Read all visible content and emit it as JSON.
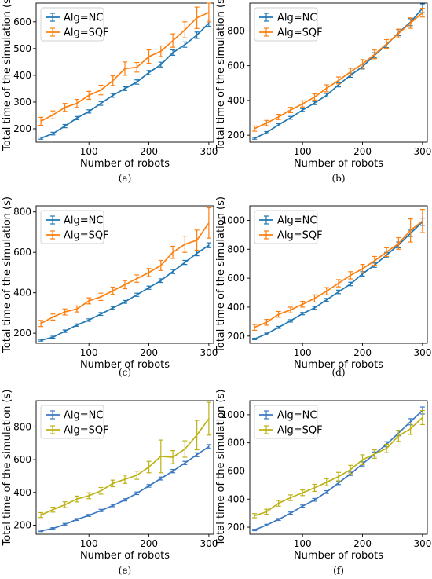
{
  "chart_data": [
    {
      "type": "line",
      "caption": "(a)",
      "xlabel": "Number of robots",
      "ylabel": "Total time of the simulation (s)",
      "xlim": [
        12,
        308
      ],
      "ylim": [
        150,
        670
      ],
      "xticks": [
        100,
        200,
        300
      ],
      "yticks": [
        200,
        300,
        400,
        500,
        600
      ],
      "legend": "top-left",
      "x": [
        20,
        40,
        60,
        80,
        100,
        120,
        140,
        160,
        180,
        200,
        220,
        240,
        260,
        280,
        300
      ],
      "series": [
        {
          "name": "Alg=NC",
          "color": "#1f77b4",
          "values": [
            165,
            182,
            210,
            240,
            265,
            295,
            325,
            350,
            375,
            410,
            440,
            485,
            515,
            550,
            595
          ],
          "errors": [
            4,
            5,
            6,
            6,
            6,
            7,
            7,
            7,
            8,
            8,
            9,
            10,
            10,
            12,
            12
          ]
        },
        {
          "name": "Alg=SQF",
          "color": "#ff7f0e",
          "values": [
            228,
            252,
            280,
            295,
            325,
            345,
            380,
            425,
            430,
            470,
            490,
            530,
            570,
            615,
            635
          ],
          "errors": [
            15,
            15,
            15,
            15,
            15,
            18,
            18,
            25,
            18,
            25,
            20,
            25,
            30,
            40,
            35
          ]
        }
      ]
    },
    {
      "type": "line",
      "caption": "(b)",
      "xlabel": "Number of robots",
      "ylabel": "Total time of the simulation (s)",
      "xlim": [
        12,
        308
      ],
      "ylim": [
        160,
        960
      ],
      "xticks": [
        100,
        200,
        300
      ],
      "yticks": [
        200,
        400,
        600,
        800
      ],
      "legend": "top-left",
      "x": [
        20,
        40,
        60,
        80,
        100,
        120,
        140,
        160,
        180,
        200,
        220,
        240,
        260,
        280,
        300
      ],
      "series": [
        {
          "name": "Alg=NC",
          "color": "#1f77b4",
          "values": [
            182,
            215,
            260,
            300,
            345,
            385,
            430,
            490,
            545,
            595,
            660,
            720,
            790,
            850,
            930
          ],
          "errors": [
            5,
            6,
            7,
            8,
            8,
            9,
            10,
            12,
            12,
            14,
            15,
            16,
            18,
            20,
            25
          ]
        },
        {
          "name": "Alg=SQF",
          "color": "#ff7f0e",
          "values": [
            238,
            270,
            305,
            345,
            380,
            420,
            470,
            515,
            565,
            610,
            665,
            725,
            785,
            845,
            905
          ],
          "errors": [
            15,
            15,
            15,
            15,
            18,
            18,
            20,
            20,
            20,
            25,
            25,
            25,
            25,
            30,
            25
          ]
        }
      ]
    },
    {
      "type": "line",
      "caption": "(c)",
      "xlabel": "Number of robots",
      "ylabel": "Total time of the simulation (s)",
      "xlim": [
        12,
        308
      ],
      "ylim": [
        150,
        830
      ],
      "xticks": [
        100,
        200,
        300
      ],
      "yticks": [
        200,
        400,
        600,
        800
      ],
      "legend": "top-left",
      "x": [
        20,
        40,
        60,
        80,
        100,
        120,
        140,
        160,
        180,
        200,
        220,
        240,
        260,
        280,
        300
      ],
      "series": [
        {
          "name": "Alg=NC",
          "color": "#1f77b4",
          "values": [
            165,
            180,
            210,
            240,
            265,
            295,
            325,
            355,
            390,
            425,
            460,
            505,
            550,
            595,
            635
          ],
          "errors": [
            4,
            5,
            6,
            6,
            6,
            7,
            7,
            7,
            8,
            8,
            9,
            10,
            10,
            12,
            12
          ]
        },
        {
          "name": "Alg=SQF",
          "color": "#ff7f0e",
          "values": [
            248,
            280,
            305,
            320,
            360,
            380,
            410,
            440,
            470,
            500,
            535,
            600,
            640,
            660,
            745
          ],
          "errors": [
            15,
            15,
            15,
            15,
            15,
            18,
            18,
            20,
            18,
            20,
            25,
            30,
            40,
            50,
            75
          ]
        }
      ]
    },
    {
      "type": "line",
      "caption": "(d)",
      "xlabel": "Number of robots",
      "ylabel": "Total time of the simulation (s)",
      "xlim": [
        12,
        308
      ],
      "ylim": [
        150,
        1100
      ],
      "xticks": [
        100,
        200,
        300
      ],
      "yticks": [
        200,
        400,
        600,
        800,
        1000
      ],
      "legend": "top-left",
      "x": [
        20,
        40,
        60,
        80,
        100,
        120,
        140,
        160,
        180,
        200,
        220,
        240,
        260,
        280,
        300
      ],
      "series": [
        {
          "name": "Alg=NC",
          "color": "#1f77b4",
          "values": [
            180,
            215,
            260,
            305,
            355,
            395,
            450,
            505,
            560,
            630,
            690,
            760,
            830,
            910,
            990
          ],
          "errors": [
            5,
            6,
            7,
            8,
            8,
            10,
            10,
            12,
            12,
            15,
            15,
            18,
            20,
            22,
            25
          ]
        },
        {
          "name": "Alg=SQF",
          "color": "#ff7f0e",
          "values": [
            260,
            295,
            350,
            380,
            420,
            460,
            510,
            565,
            620,
            665,
            720,
            780,
            840,
            930,
            995
          ],
          "errors": [
            20,
            20,
            20,
            20,
            20,
            25,
            25,
            25,
            25,
            30,
            30,
            30,
            40,
            80,
            80
          ]
        }
      ]
    },
    {
      "type": "line",
      "caption": "(e)",
      "xlabel": "Number of robots",
      "ylabel": "Total time of the simulation (s)",
      "xlim": [
        12,
        308
      ],
      "ylim": [
        145,
        960
      ],
      "xticks": [
        100,
        200,
        300
      ],
      "yticks": [
        200,
        400,
        600,
        800
      ],
      "legend": "top-left",
      "x": [
        20,
        40,
        60,
        80,
        100,
        120,
        140,
        160,
        180,
        200,
        220,
        240,
        260,
        280,
        300
      ],
      "series": [
        {
          "name": "Alg=NC",
          "color": "#3b78c2",
          "values": [
            165,
            180,
            205,
            235,
            260,
            290,
            320,
            355,
            395,
            440,
            485,
            530,
            580,
            630,
            680
          ],
          "errors": [
            4,
            5,
            6,
            6,
            6,
            7,
            7,
            7,
            8,
            8,
            9,
            10,
            10,
            12,
            12
          ]
        },
        {
          "name": "Alg=SQF",
          "color": "#bcb216",
          "values": [
            262,
            295,
            325,
            360,
            380,
            410,
            455,
            480,
            505,
            555,
            620,
            615,
            665,
            750,
            850
          ],
          "errors": [
            15,
            15,
            18,
            18,
            18,
            20,
            20,
            25,
            25,
            35,
            100,
            40,
            50,
            90,
            100
          ]
        }
      ]
    },
    {
      "type": "line",
      "caption": "(f)",
      "xlabel": "Number of robots",
      "ylabel": "Total time of the simulation (s)",
      "xlim": [
        12,
        308
      ],
      "ylim": [
        150,
        1100
      ],
      "xticks": [
        100,
        200,
        300
      ],
      "yticks": [
        200,
        400,
        600,
        800,
        1000
      ],
      "legend": "top-left",
      "x": [
        20,
        40,
        60,
        80,
        100,
        120,
        140,
        160,
        180,
        200,
        220,
        240,
        260,
        280,
        300
      ],
      "series": [
        {
          "name": "Alg=NC",
          "color": "#3b78c2",
          "values": [
            180,
            215,
            255,
            300,
            350,
            395,
            450,
            515,
            580,
            650,
            720,
            790,
            870,
            950,
            1030
          ],
          "errors": [
            5,
            6,
            7,
            8,
            8,
            10,
            10,
            12,
            12,
            15,
            15,
            18,
            20,
            22,
            25
          ]
        },
        {
          "name": "Alg=SQF",
          "color": "#bcb216",
          "values": [
            282,
            310,
            370,
            410,
            445,
            480,
            520,
            560,
            610,
            680,
            720,
            760,
            850,
            900,
            980
          ],
          "errors": [
            15,
            18,
            20,
            20,
            20,
            25,
            25,
            30,
            30,
            35,
            30,
            30,
            40,
            40,
            50
          ]
        }
      ]
    }
  ]
}
